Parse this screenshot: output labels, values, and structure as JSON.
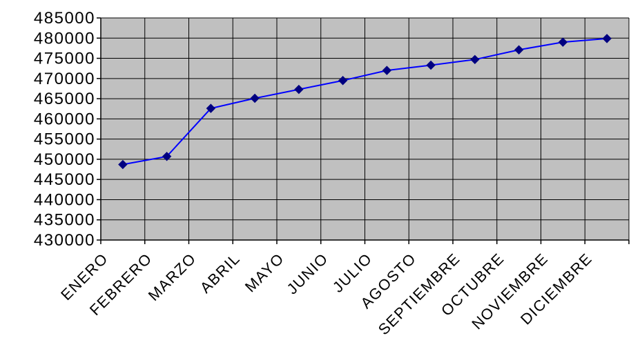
{
  "chart_data": {
    "type": "line",
    "title": "",
    "xlabel": "",
    "ylabel": "",
    "categories": [
      "ENERO",
      "FEBRERO",
      "MARZO",
      "ABRIL",
      "MAYO",
      "JUNIO",
      "JULIO",
      "AGOSTO",
      "SEPTIEMBRE",
      "OCTUBRE",
      "NOVIEMBRE",
      "DICIEMBRE"
    ],
    "series": [
      {
        "values": [
          448700,
          450700,
          462600,
          465100,
          467300,
          469500,
          472000,
          473300,
          474700,
          477100,
          479000,
          479900
        ]
      }
    ],
    "ylim": [
      430000,
      485000
    ],
    "yticks": [
      430000,
      435000,
      440000,
      445000,
      450000,
      455000,
      460000,
      465000,
      470000,
      475000,
      480000,
      485000
    ],
    "ytick_labels": [
      "430000",
      "435000",
      "440000",
      "445000",
      "450000",
      "455000",
      "460000",
      "465000",
      "470000",
      "475000",
      "480000",
      "485000"
    ],
    "grid": true,
    "legend": "none",
    "colors": {
      "plot_background": "#c0c0c0",
      "gridline": "#000000",
      "line": "#0000ff",
      "marker": "#000080"
    }
  }
}
